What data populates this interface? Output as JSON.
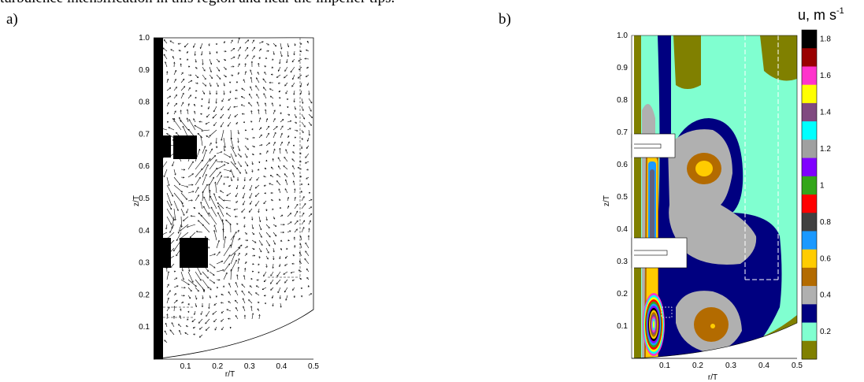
{
  "caption": "turbulence intensification in this region and near the impeller tips.",
  "panel_a": {
    "label": "a)",
    "xlabel": "r/T",
    "ylabel": "z/T",
    "xticks": [
      "0.1",
      "0.2",
      "0.3",
      "0.4",
      "0.5"
    ],
    "yticks": [
      "0.1",
      "0.2",
      "0.3",
      "0.4",
      "0.5",
      "0.6",
      "0.7",
      "0.8",
      "0.9",
      "1.0"
    ]
  },
  "panel_b": {
    "label": "b)",
    "xlabel": "r/T",
    "ylabel": "z/T",
    "xticks": [
      "0.1",
      "0.2",
      "0.3",
      "0.4",
      "0.5"
    ],
    "yticks": [
      "0.1",
      "0.2",
      "0.3",
      "0.4",
      "0.5",
      "0.6",
      "0.7",
      "0.8",
      "0.9",
      "1.0"
    ],
    "colorbar_title": "u, m s",
    "colorbar_title_sup": "-1",
    "colorbar_ticks": [
      "1.8",
      "1.6",
      "1.4",
      "1.2",
      "1",
      "0.8",
      "0.6",
      "0.4",
      "0.2"
    ],
    "colorbar_colors": [
      "#000000",
      "#990000",
      "#ff33cc",
      "#ffff00",
      "#804a80",
      "#00ffff",
      "#a0a0a0",
      "#8000ff",
      "#33a61a",
      "#ff0000",
      "#404040",
      "#1a99ff",
      "#ffcc00",
      "#b36b00",
      "#b0b0b0",
      "#000080",
      "#80ffd0",
      "#808000"
    ]
  },
  "colors": {
    "olive": "#808000",
    "aqua": "#80ffd0",
    "navy": "#000080",
    "grey": "#b0b0b0",
    "orange": "#b36b00",
    "gold": "#ffcc00"
  }
}
